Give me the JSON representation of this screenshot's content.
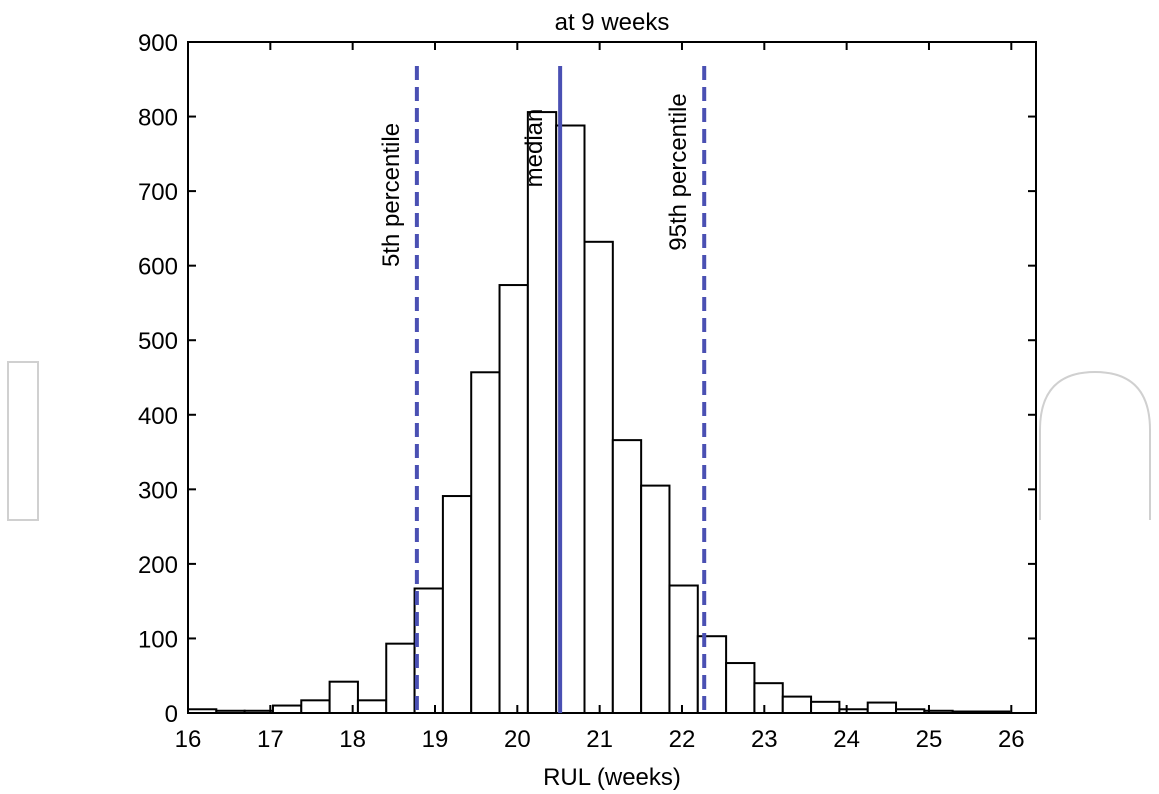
{
  "chart_data": {
    "type": "bar",
    "title": "at 9 weeks",
    "xlabel": "RUL (weeks)",
    "ylabel": "",
    "xlim": [
      16,
      26.3
    ],
    "ylim": [
      0,
      900
    ],
    "xticks": [
      "16",
      "17",
      "18",
      "19",
      "20",
      "21",
      "22",
      "23",
      "24",
      "25",
      "26"
    ],
    "yticks": [
      "0",
      "100",
      "200",
      "300",
      "400",
      "500",
      "600",
      "700",
      "800",
      "900"
    ],
    "bin_width": 0.344,
    "bin_starts": [
      16.0,
      16.344,
      16.688,
      17.032,
      17.376,
      17.72,
      18.064,
      18.408,
      18.752,
      19.096,
      19.44,
      19.784,
      20.128,
      20.472,
      20.816,
      21.16,
      21.504,
      21.848,
      22.192,
      22.536,
      22.88,
      23.224,
      23.568,
      23.912,
      24.256,
      24.6,
      24.944,
      25.288,
      25.632
    ],
    "values": [
      5,
      3,
      3,
      10,
      17,
      42,
      17,
      93,
      167,
      291,
      457,
      574,
      806,
      788,
      632,
      366,
      305,
      171,
      103,
      67,
      40,
      22,
      15,
      5,
      14,
      5,
      3,
      2,
      2
    ],
    "bar_fill": "#ffffff",
    "bar_edge": "#000000",
    "grid": false,
    "markers": [
      {
        "label": "5th percentile",
        "x": 18.78,
        "style": "dashed",
        "color": "#4a50b3"
      },
      {
        "label": "median",
        "x": 20.52,
        "style": "solid",
        "color": "#4a50b3"
      },
      {
        "label": "95th percentile",
        "x": 22.27,
        "style": "dashed",
        "color": "#4a50b3"
      }
    ]
  }
}
